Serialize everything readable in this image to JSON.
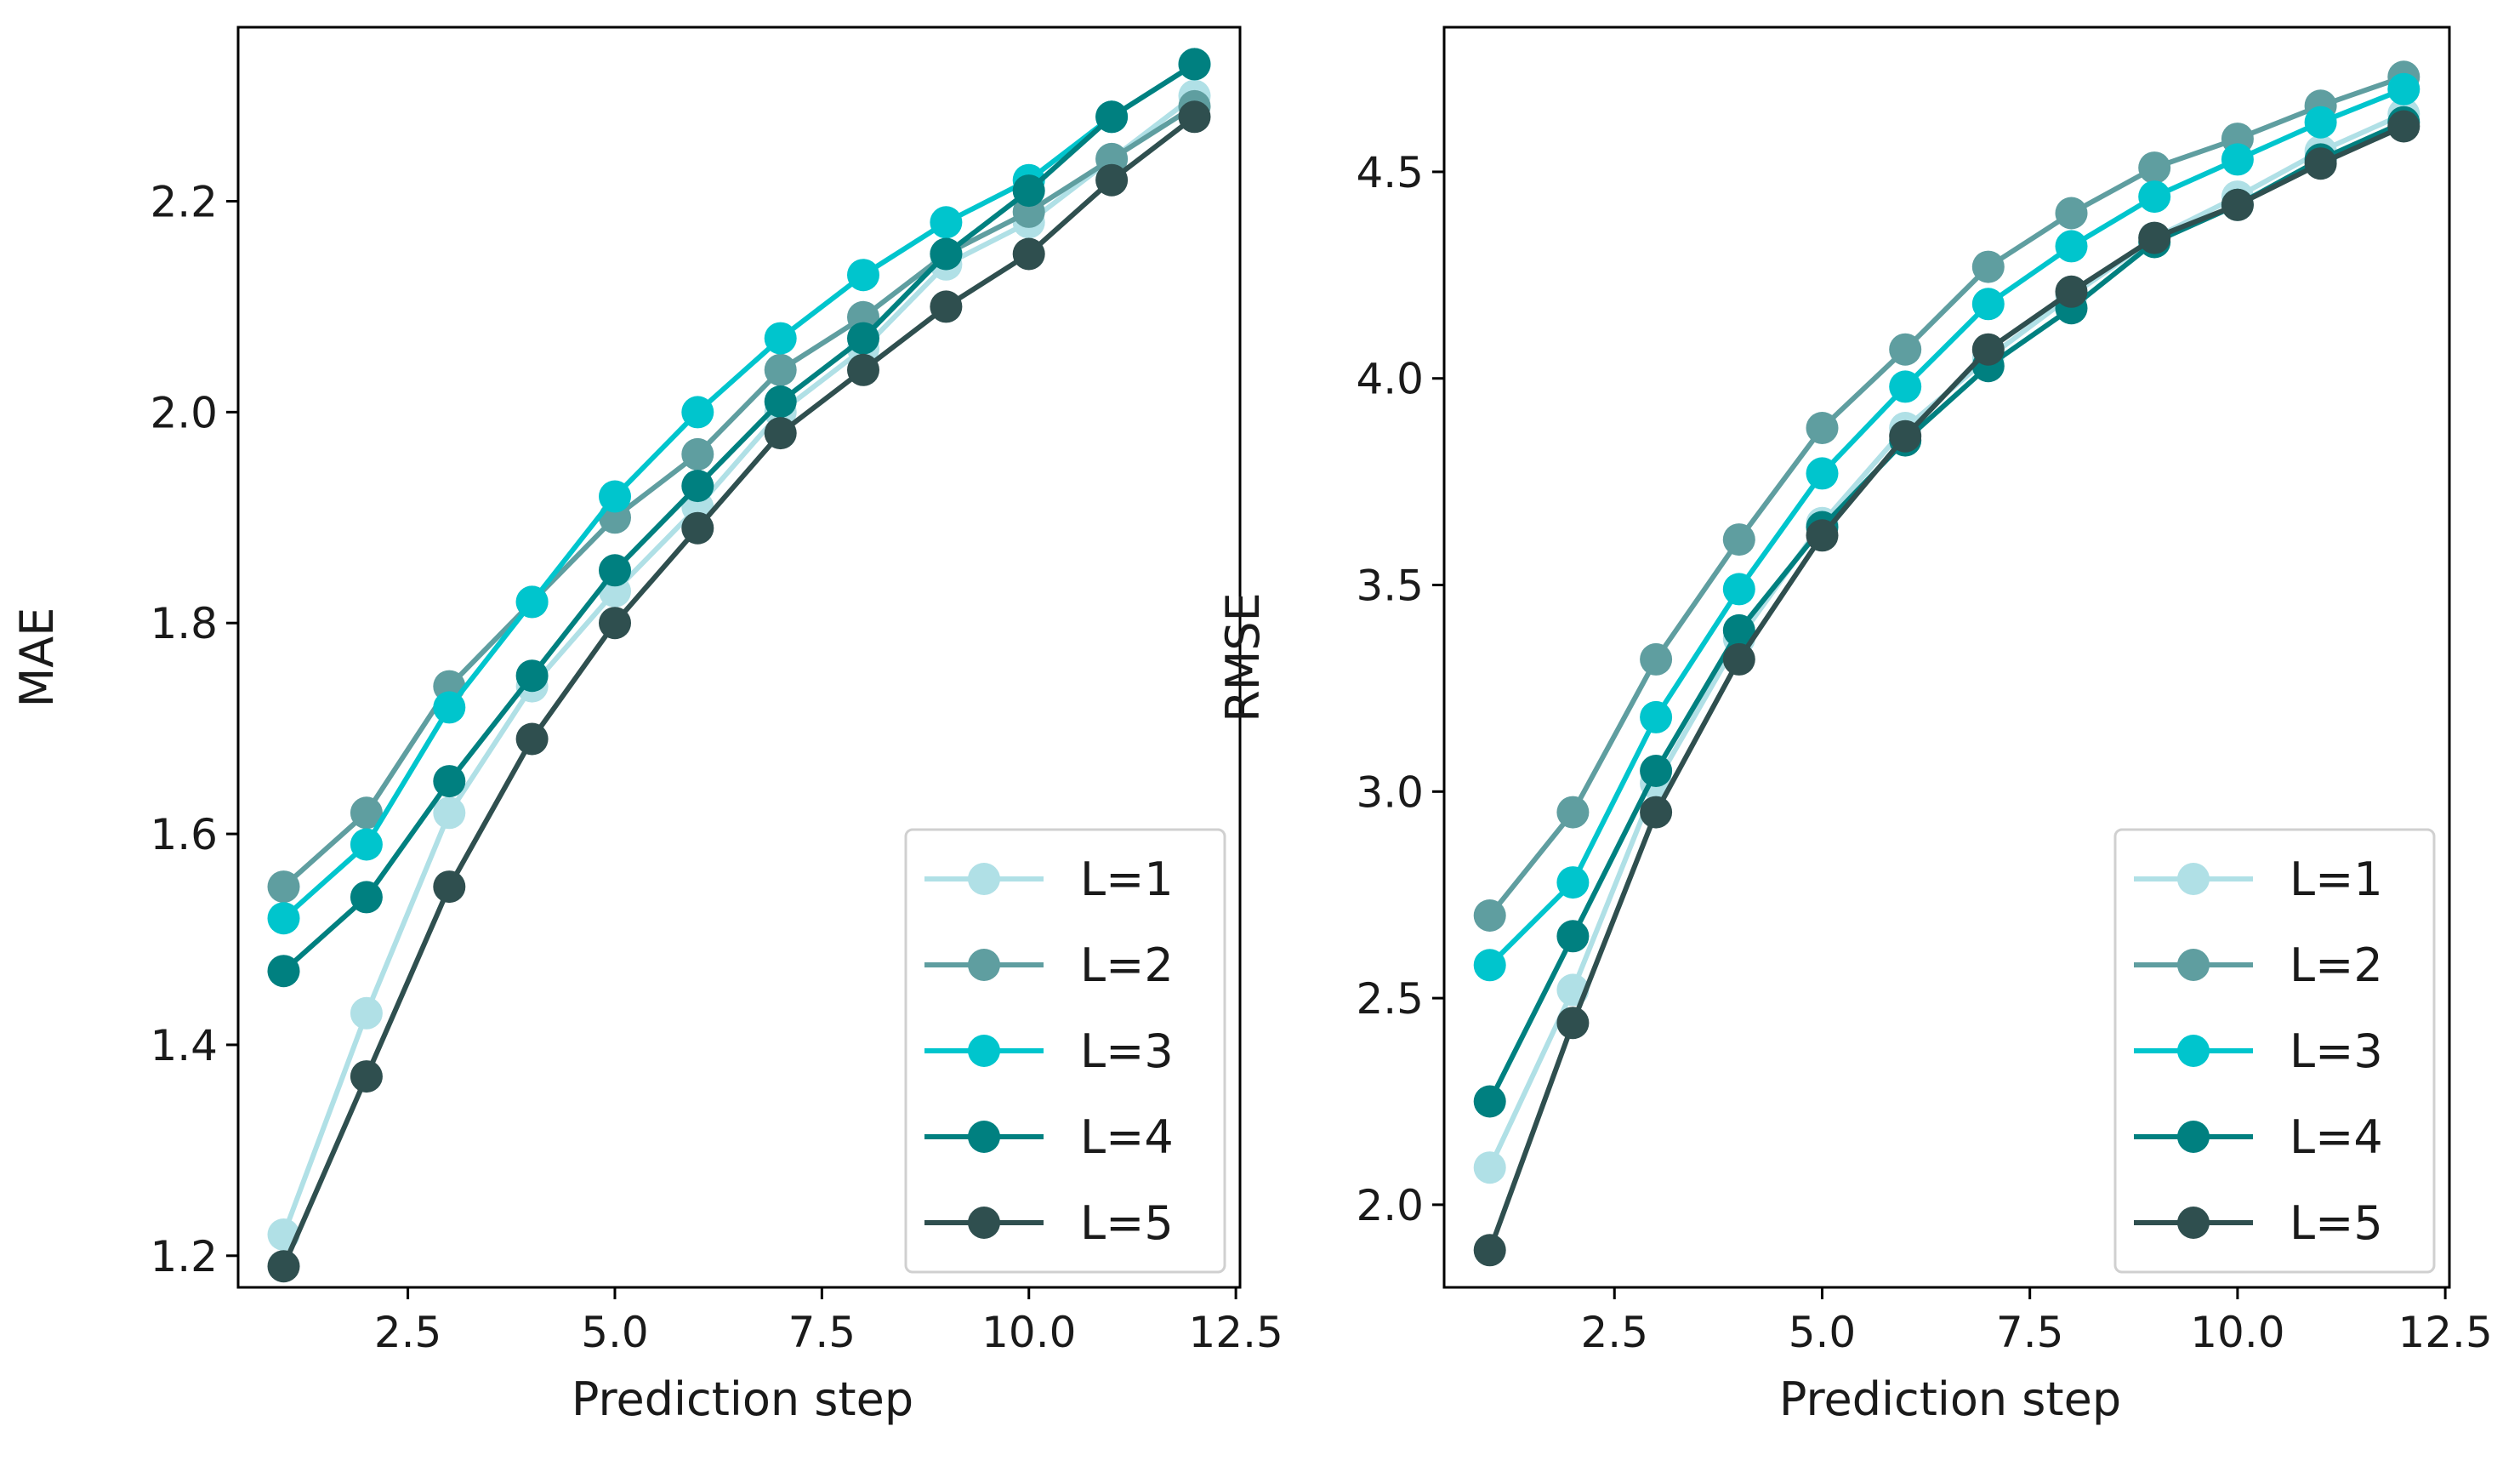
{
  "chart_data": [
    {
      "type": "line",
      "title": "",
      "xlabel": "Prediction step",
      "ylabel": "MAE",
      "xlim": [
        0.45,
        12.55
      ],
      "ylim": [
        1.17,
        2.365
      ],
      "xticks": [
        2.5,
        5.0,
        7.5,
        10.0,
        12.5
      ],
      "xtick_labels": [
        "2.5",
        "5.0",
        "7.5",
        "10.0",
        "12.5"
      ],
      "yticks": [
        1.2,
        1.4,
        1.6,
        1.8,
        2.0,
        2.2
      ],
      "ytick_labels": [
        "1.2",
        "1.4",
        "1.6",
        "1.8",
        "2.0",
        "2.2"
      ],
      "grid": false,
      "legend_position": "lower-right",
      "x": [
        1,
        2,
        3,
        4,
        5,
        6,
        7,
        8,
        9,
        10,
        11,
        12
      ],
      "series": [
        {
          "name": "L=1",
          "color": "#b0e0e6",
          "values": [
            1.22,
            1.43,
            1.62,
            1.74,
            1.83,
            1.91,
            2.0,
            2.06,
            2.14,
            2.18,
            2.24,
            2.3
          ]
        },
        {
          "name": "L=2",
          "color": "#5f9ea0",
          "values": [
            1.55,
            1.62,
            1.74,
            1.82,
            1.9,
            1.96,
            2.04,
            2.09,
            2.15,
            2.19,
            2.24,
            2.29
          ]
        },
        {
          "name": "L=3",
          "color": "#00c5cd",
          "values": [
            1.52,
            1.59,
            1.72,
            1.82,
            1.92,
            2.0,
            2.07,
            2.13,
            2.18,
            2.22,
            2.28,
            2.33
          ]
        },
        {
          "name": "L=4",
          "color": "#008080",
          "values": [
            1.47,
            1.54,
            1.65,
            1.75,
            1.85,
            1.93,
            2.01,
            2.07,
            2.15,
            2.21,
            2.28,
            2.33
          ]
        },
        {
          "name": "L=5",
          "color": "#2f4f4f",
          "values": [
            1.19,
            1.37,
            1.55,
            1.69,
            1.8,
            1.89,
            1.98,
            2.04,
            2.1,
            2.15,
            2.22,
            2.28
          ]
        }
      ]
    },
    {
      "type": "line",
      "title": "",
      "xlabel": "Prediction step",
      "ylabel": "RMSE",
      "xlim": [
        0.45,
        12.55
      ],
      "ylim": [
        1.8,
        4.85
      ],
      "xticks": [
        2.5,
        5.0,
        7.5,
        10.0,
        12.5
      ],
      "xtick_labels": [
        "2.5",
        "5.0",
        "7.5",
        "10.0",
        "12.5"
      ],
      "yticks": [
        2.0,
        2.5,
        3.0,
        3.5,
        4.0,
        4.5
      ],
      "ytick_labels": [
        "2.0",
        "2.5",
        "3.0",
        "3.5",
        "4.0",
        "4.5"
      ],
      "grid": false,
      "legend_position": "lower-right",
      "x": [
        1,
        2,
        3,
        4,
        5,
        6,
        7,
        8,
        9,
        10,
        11,
        12
      ],
      "series": [
        {
          "name": "L=1",
          "color": "#b0e0e6",
          "values": [
            2.09,
            2.52,
            3.02,
            3.37,
            3.65,
            3.88,
            4.05,
            4.2,
            4.34,
            4.44,
            4.55,
            4.64
          ]
        },
        {
          "name": "L=2",
          "color": "#5f9ea0",
          "values": [
            2.7,
            2.95,
            3.32,
            3.61,
            3.88,
            4.07,
            4.27,
            4.4,
            4.51,
            4.58,
            4.66,
            4.73
          ]
        },
        {
          "name": "L=3",
          "color": "#00c5cd",
          "values": [
            2.58,
            2.78,
            3.18,
            3.49,
            3.77,
            3.98,
            4.18,
            4.32,
            4.44,
            4.53,
            4.62,
            4.7
          ]
        },
        {
          "name": "L=4",
          "color": "#008080",
          "values": [
            2.25,
            2.65,
            3.05,
            3.39,
            3.64,
            3.85,
            4.03,
            4.17,
            4.33,
            4.42,
            4.53,
            4.62
          ]
        },
        {
          "name": "L=5",
          "color": "#2f4f4f",
          "values": [
            1.89,
            2.44,
            2.95,
            3.32,
            3.62,
            3.86,
            4.07,
            4.21,
            4.34,
            4.42,
            4.52,
            4.61
          ]
        }
      ]
    }
  ]
}
